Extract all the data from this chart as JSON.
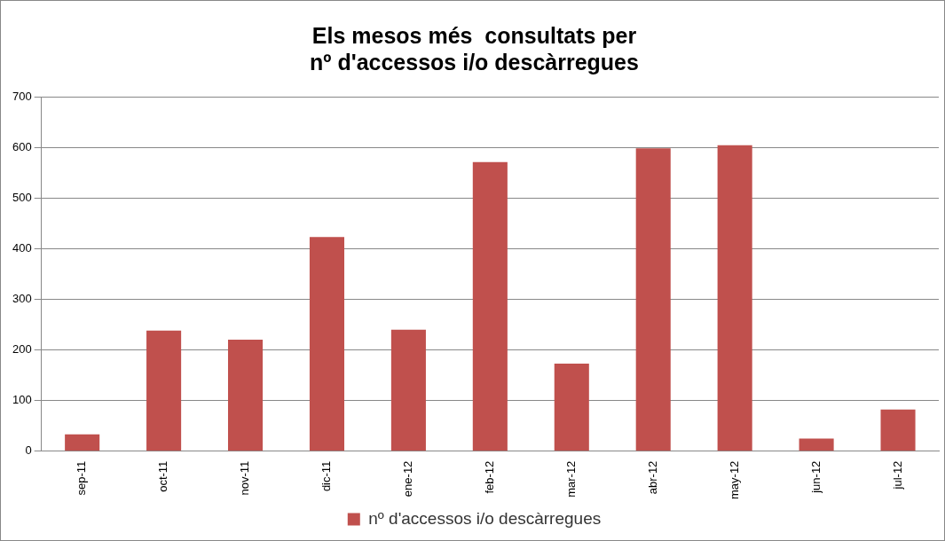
{
  "chart_data": {
    "type": "bar",
    "title": "Els mesos més  consultats per\nnº d'accessos i/o descàrregues",
    "categories": [
      "sep-11",
      "oct-11",
      "nov-11",
      "dic-11",
      "ene-12",
      "feb-12",
      "mar-12",
      "abr-12",
      "may-12",
      "jun-12",
      "jul-12"
    ],
    "series": [
      {
        "name": "nº d'accessos i/o descàrregues",
        "color": "#c0504d",
        "values": [
          33,
          238,
          220,
          423,
          240,
          571,
          173,
          598,
          604,
          25,
          82
        ]
      }
    ],
    "ylim": [
      0,
      700
    ],
    "yticks": [
      0,
      100,
      200,
      300,
      400,
      500,
      600,
      700
    ],
    "grid": "y",
    "legend": "bottom"
  }
}
